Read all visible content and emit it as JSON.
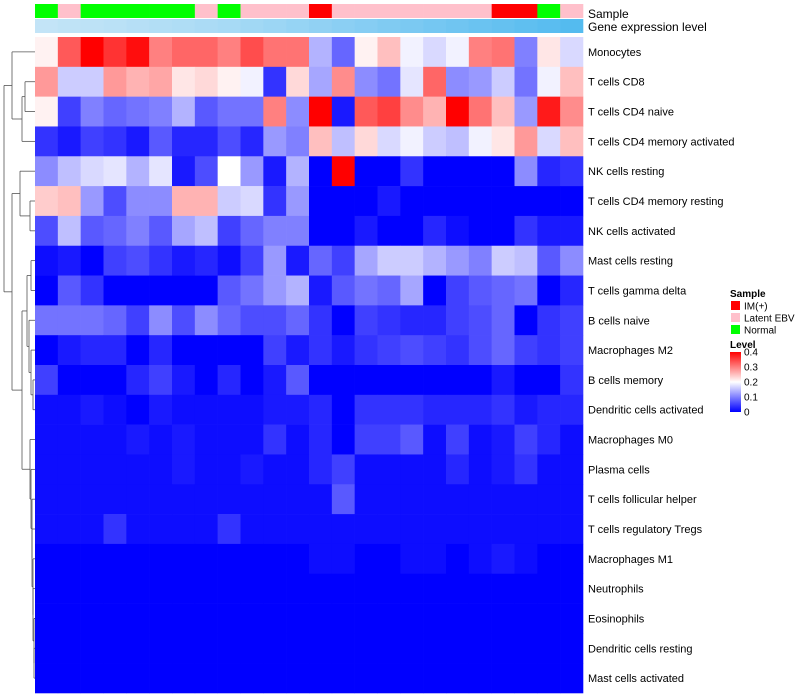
{
  "annotation_titles": {
    "sample": "Sample",
    "expression": "Gene expression level"
  },
  "legends": {
    "sample": {
      "title": "Sample",
      "entries": [
        {
          "label": "IM(+)",
          "color": "#ff0000"
        },
        {
          "label": "Latent EBV",
          "color": "#ffc0cb"
        },
        {
          "label": "Normal",
          "color": "#00ff00"
        }
      ]
    },
    "level": {
      "title": "Level",
      "ticks": [
        "0.4",
        "0.3",
        "0.2",
        "0.1",
        "0"
      ],
      "tick_values": [
        0.4,
        0.3,
        0.2,
        0.1,
        0
      ],
      "color_low": "#0000ff",
      "color_mid": "#ffffff",
      "color_high": "#ff0000"
    }
  },
  "chart_data": {
    "type": "heatmap",
    "title": "",
    "value_range": [
      0,
      0.4
    ],
    "row_dendrogram": true,
    "rows": [
      "Monocytes",
      "T cells CD8",
      "T cells CD4 naive",
      "T cells CD4 memory activated",
      "NK cells resting",
      "T cells CD4 memory resting",
      "NK cells activated",
      "Mast cells resting",
      "T cells gamma delta",
      "B cells naive",
      "Macrophages M2",
      "B cells memory",
      "Dendritic cells activated",
      "Macrophages M0",
      "Plasma cells",
      "T cells follicular helper",
      "T cells regulatory  Tregs",
      "Macrophages M1",
      "Neutrophils",
      "Eosinophils",
      "Dendritic cells resting",
      "Mast cells activated"
    ],
    "column_samples": [
      "Normal",
      "Latent EBV",
      "Normal",
      "Normal",
      "Normal",
      "Normal",
      "Normal",
      "Latent EBV",
      "Normal",
      "Latent EBV",
      "Latent EBV",
      "Latent EBV",
      "IM(+)",
      "Latent EBV",
      "Latent EBV",
      "Latent EBV",
      "Latent EBV",
      "Latent EBV",
      "Latent EBV",
      "Latent EBV",
      "IM(+)",
      "IM(+)",
      "Normal",
      "Latent EBV"
    ],
    "column_expression_level": [
      0.15,
      0.18,
      0.2,
      0.22,
      0.25,
      0.28,
      0.3,
      0.33,
      0.36,
      0.4,
      0.44,
      0.48,
      0.52,
      0.56,
      0.6,
      0.64,
      0.68,
      0.72,
      0.76,
      0.8,
      0.84,
      0.88,
      0.92,
      0.96
    ],
    "values": [
      [
        0.21,
        0.33,
        0.4,
        0.36,
        0.39,
        0.3,
        0.32,
        0.32,
        0.3,
        0.34,
        0.31,
        0.31,
        0.14,
        0.08,
        0.21,
        0.25,
        0.19,
        0.17,
        0.19,
        0.3,
        0.31,
        0.1,
        0.22,
        0.17
      ],
      [
        0.28,
        0.16,
        0.16,
        0.28,
        0.26,
        0.27,
        0.22,
        0.23,
        0.21,
        0.19,
        0.04,
        0.23,
        0.13,
        0.29,
        0.11,
        0.09,
        0.18,
        0.32,
        0.11,
        0.12,
        0.16,
        0.09,
        0.19,
        0.25
      ],
      [
        0.21,
        0.05,
        0.1,
        0.08,
        0.09,
        0.1,
        0.14,
        0.07,
        0.09,
        0.09,
        0.3,
        0.11,
        0.4,
        0.02,
        0.33,
        0.35,
        0.29,
        0.26,
        0.4,
        0.31,
        0.25,
        0.12,
        0.38,
        0.29
      ],
      [
        0.04,
        0.02,
        0.05,
        0.04,
        0.02,
        0.07,
        0.03,
        0.03,
        0.06,
        0.03,
        0.12,
        0.1,
        0.25,
        0.15,
        0.23,
        0.17,
        0.19,
        0.16,
        0.15,
        0.19,
        0.22,
        0.28,
        0.17,
        0.25
      ],
      [
        0.11,
        0.15,
        0.17,
        0.18,
        0.14,
        0.18,
        0.02,
        0.06,
        0.2,
        0.12,
        0.02,
        0.14,
        0.0,
        0.4,
        0.0,
        0.0,
        0.04,
        0.0,
        0.0,
        0.0,
        0.0,
        0.11,
        0.03,
        0.04
      ],
      [
        0.24,
        0.25,
        0.12,
        0.06,
        0.11,
        0.11,
        0.26,
        0.26,
        0.16,
        0.17,
        0.04,
        0.12,
        0.0,
        0.0,
        0.0,
        0.02,
        0.0,
        0.0,
        0.0,
        0.0,
        0.0,
        0.0,
        0.0,
        0.0
      ],
      [
        0.06,
        0.15,
        0.07,
        0.08,
        0.1,
        0.07,
        0.13,
        0.15,
        0.05,
        0.08,
        0.1,
        0.1,
        0.0,
        0.0,
        0.02,
        0.0,
        0.0,
        0.03,
        0.01,
        0.0,
        0.0,
        0.04,
        0.02,
        0.02
      ],
      [
        0.01,
        0.02,
        0.0,
        0.05,
        0.06,
        0.04,
        0.02,
        0.03,
        0.01,
        0.05,
        0.12,
        0.02,
        0.08,
        0.05,
        0.13,
        0.16,
        0.16,
        0.14,
        0.12,
        0.1,
        0.16,
        0.15,
        0.07,
        0.11
      ],
      [
        0.0,
        0.07,
        0.04,
        0.0,
        0.0,
        0.0,
        0.0,
        0.0,
        0.07,
        0.09,
        0.12,
        0.14,
        0.02,
        0.07,
        0.09,
        0.08,
        0.13,
        0.0,
        0.05,
        0.07,
        0.08,
        0.09,
        0.0,
        0.03
      ],
      [
        0.09,
        0.09,
        0.09,
        0.08,
        0.05,
        0.11,
        0.06,
        0.11,
        0.08,
        0.06,
        0.06,
        0.08,
        0.04,
        0.0,
        0.05,
        0.04,
        0.03,
        0.03,
        0.05,
        0.06,
        0.08,
        0.0,
        0.04,
        0.05
      ],
      [
        0.0,
        0.02,
        0.03,
        0.03,
        0.0,
        0.03,
        0.0,
        0.0,
        0.0,
        0.0,
        0.05,
        0.02,
        0.04,
        0.02,
        0.04,
        0.05,
        0.06,
        0.05,
        0.04,
        0.06,
        0.08,
        0.05,
        0.04,
        0.05
      ],
      [
        0.05,
        0.0,
        0.0,
        0.0,
        0.03,
        0.05,
        0.02,
        0.0,
        0.03,
        0.0,
        0.02,
        0.07,
        0.0,
        0.0,
        0.0,
        0.0,
        0.0,
        0.0,
        0.0,
        0.0,
        0.02,
        0.0,
        0.0,
        0.04
      ],
      [
        0.01,
        0.01,
        0.02,
        0.01,
        0.0,
        0.02,
        0.01,
        0.01,
        0.01,
        0.01,
        0.02,
        0.02,
        0.03,
        0.0,
        0.04,
        0.04,
        0.04,
        0.03,
        0.03,
        0.03,
        0.04,
        0.02,
        0.03,
        0.03
      ],
      [
        0.01,
        0.01,
        0.01,
        0.01,
        0.02,
        0.01,
        0.02,
        0.01,
        0.01,
        0.01,
        0.04,
        0.01,
        0.03,
        0.0,
        0.05,
        0.05,
        0.07,
        0.01,
        0.05,
        0.01,
        0.02,
        0.05,
        0.03,
        0.01
      ],
      [
        0.01,
        0.01,
        0.01,
        0.01,
        0.01,
        0.01,
        0.02,
        0.01,
        0.01,
        0.02,
        0.01,
        0.01,
        0.03,
        0.05,
        0.01,
        0.01,
        0.01,
        0.01,
        0.03,
        0.01,
        0.02,
        0.04,
        0.01,
        0.01
      ],
      [
        0.01,
        0.01,
        0.01,
        0.01,
        0.01,
        0.01,
        0.01,
        0.01,
        0.01,
        0.01,
        0.01,
        0.01,
        0.01,
        0.07,
        0.01,
        0.01,
        0.01,
        0.01,
        0.01,
        0.01,
        0.01,
        0.01,
        0.01,
        0.01
      ],
      [
        0.01,
        0.01,
        0.01,
        0.04,
        0.01,
        0.01,
        0.01,
        0.01,
        0.04,
        0.01,
        0.01,
        0.01,
        0.01,
        0.01,
        0.01,
        0.01,
        0.01,
        0.01,
        0.01,
        0.01,
        0.01,
        0.01,
        0.01,
        0.01
      ],
      [
        0.0,
        0.0,
        0.0,
        0.0,
        0.0,
        0.0,
        0.0,
        0.0,
        0.0,
        0.0,
        0.0,
        0.0,
        0.01,
        0.01,
        0.0,
        0.0,
        0.01,
        0.01,
        0.0,
        0.01,
        0.02,
        0.01,
        0.0,
        0.0
      ],
      [
        0.0,
        0.0,
        0.0,
        0.0,
        0.0,
        0.0,
        0.0,
        0.0,
        0.0,
        0.0,
        0.0,
        0.0,
        0.0,
        0.0,
        0.0,
        0.0,
        0.0,
        0.0,
        0.0,
        0.0,
        0.0,
        0.0,
        0.0,
        0.0
      ],
      [
        0.0,
        0.0,
        0.0,
        0.0,
        0.0,
        0.0,
        0.0,
        0.0,
        0.0,
        0.0,
        0.0,
        0.0,
        0.0,
        0.0,
        0.0,
        0.0,
        0.0,
        0.0,
        0.0,
        0.0,
        0.0,
        0.0,
        0.0,
        0.0
      ],
      [
        0.0,
        0.0,
        0.0,
        0.0,
        0.0,
        0.0,
        0.0,
        0.0,
        0.0,
        0.0,
        0.0,
        0.0,
        0.0,
        0.0,
        0.0,
        0.0,
        0.0,
        0.0,
        0.0,
        0.0,
        0.0,
        0.0,
        0.0,
        0.0
      ],
      [
        0.0,
        0.0,
        0.0,
        0.0,
        0.0,
        0.0,
        0.0,
        0.0,
        0.0,
        0.0,
        0.0,
        0.0,
        0.0,
        0.0,
        0.0,
        0.0,
        0.0,
        0.0,
        0.0,
        0.0,
        0.0,
        0.0,
        0.0,
        0.0
      ]
    ]
  }
}
